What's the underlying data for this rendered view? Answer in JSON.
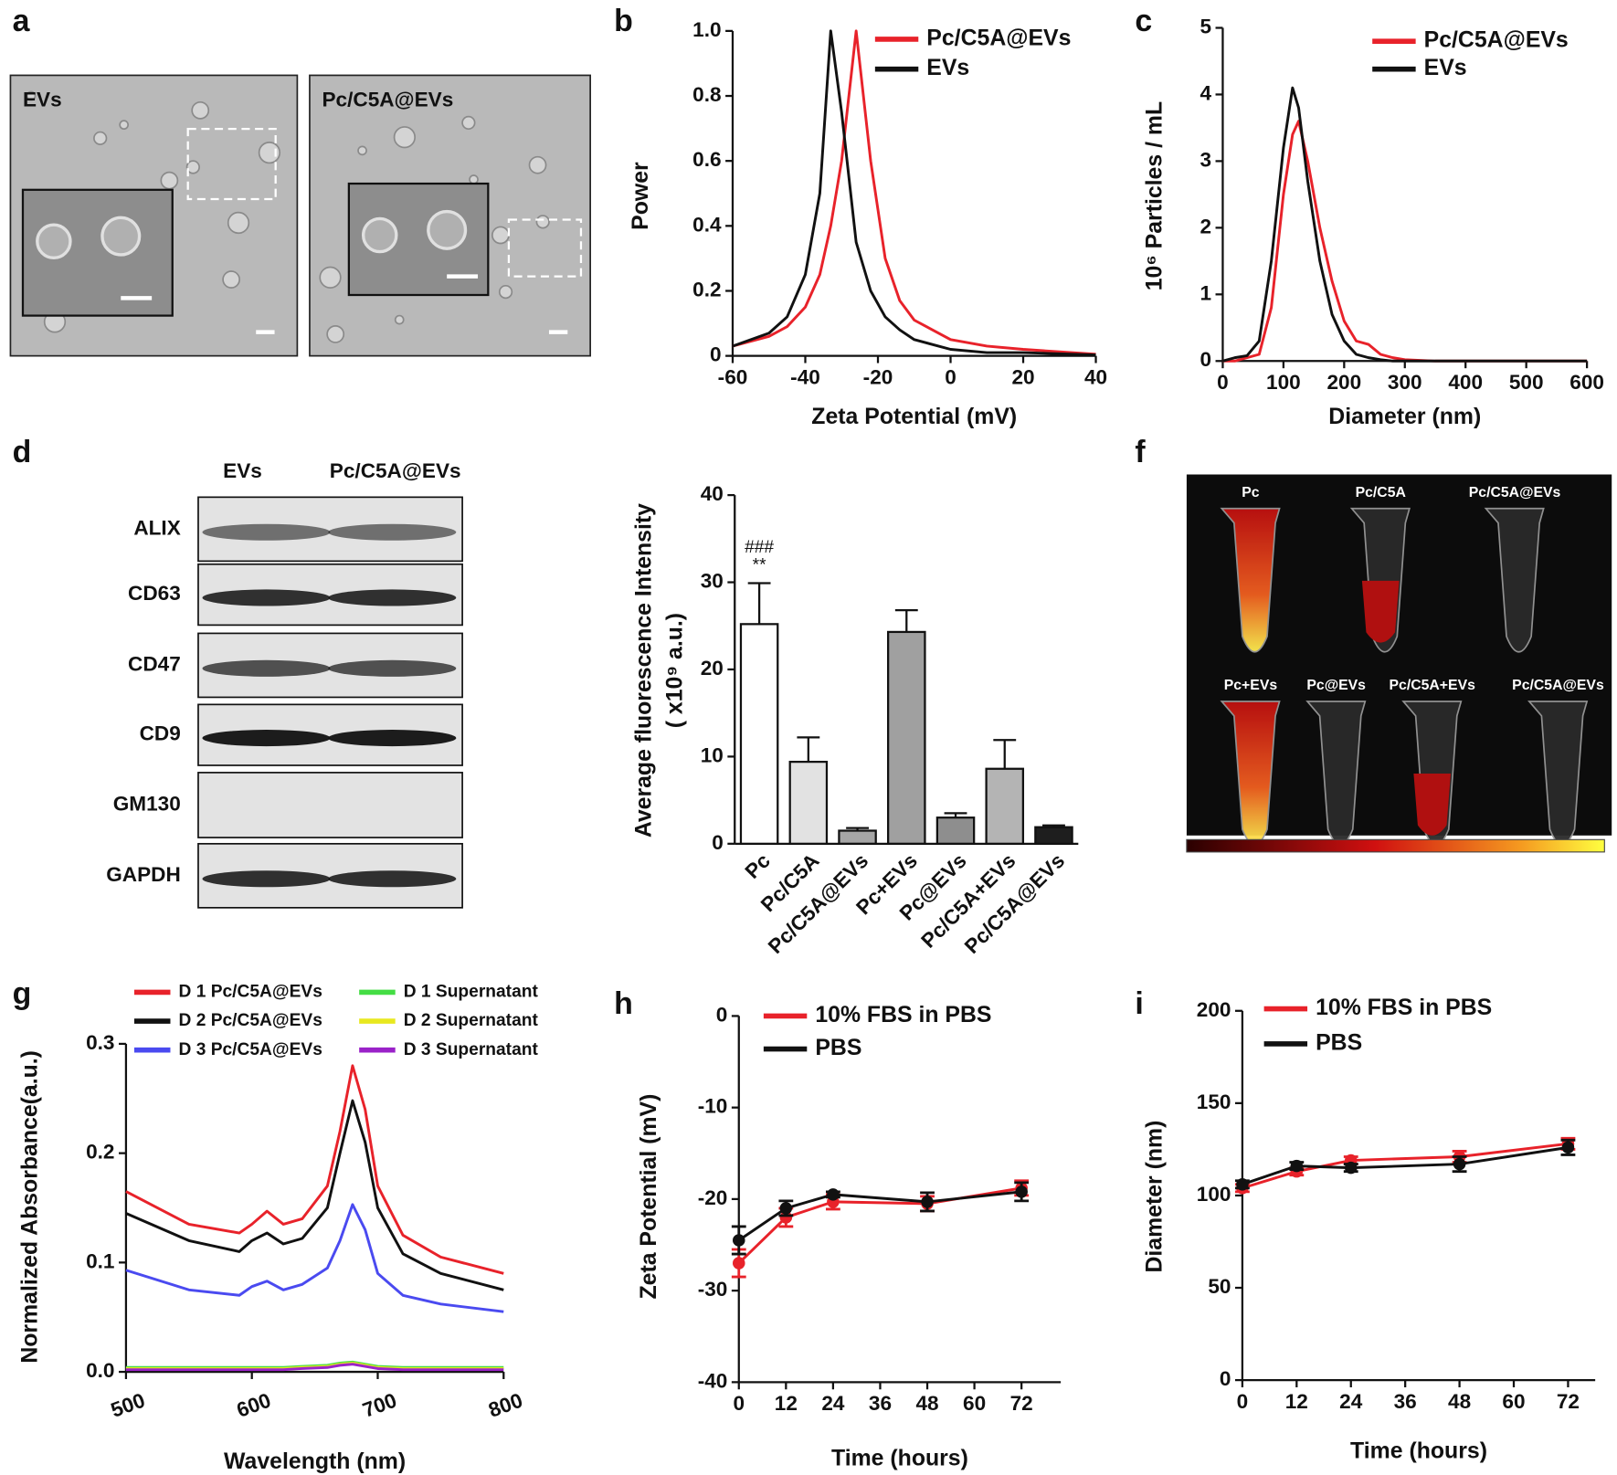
{
  "panel_labels": [
    "a",
    "b",
    "c",
    "d",
    "f",
    "g",
    "h",
    "i"
  ],
  "images": {
    "a": {
      "labels": [
        "EVs",
        "Pc/C5A@EVs"
      ]
    },
    "d": {
      "columns": [
        "EVs",
        "Pc/C5A@EVs"
      ],
      "rows": [
        "ALIX",
        "CD63",
        "CD47",
        "CD9",
        "GM130",
        "GAPDH"
      ]
    },
    "f": {
      "labels": [
        "Pc",
        "Pc/C5A",
        "Pc/C5A@EVs",
        "Pc+EVs",
        "Pc@EVs",
        "Pc/C5A+EVs",
        "Pc/C5A@EVs"
      ]
    }
  },
  "chart_data": [
    {
      "type": "line",
      "xlabel": "Zeta Potential (mV)",
      "ylabel": "Power",
      "x": [
        -60,
        -50,
        -45,
        -40,
        -36,
        -33,
        -30,
        -26,
        -22,
        -18,
        -14,
        -10,
        0,
        10,
        20,
        40
      ],
      "series": [
        {
          "name": "Pc/C5A@EVs",
          "color": "#e8222a",
          "values": [
            0.03,
            0.06,
            0.09,
            0.15,
            0.25,
            0.4,
            0.6,
            1.0,
            0.6,
            0.3,
            0.17,
            0.11,
            0.05,
            0.03,
            0.02,
            0.005
          ]
        },
        {
          "name": "EVs",
          "color": "#111111",
          "values": [
            0.03,
            0.07,
            0.12,
            0.25,
            0.5,
            1.0,
            0.75,
            0.35,
            0.2,
            0.12,
            0.08,
            0.05,
            0.02,
            0.01,
            0.01,
            0.003
          ]
        }
      ],
      "xlim": [
        -60,
        40
      ],
      "xticks": [
        -60,
        -40,
        -20,
        0,
        20,
        40
      ],
      "ylim": [
        0,
        1
      ],
      "yticks": [
        0,
        0.2,
        0.4,
        0.6,
        0.8,
        {
          "value": 1,
          "label": "1.0"
        }
      ],
      "legend": "upper right"
    },
    {
      "type": "line",
      "xlabel": "Diameter (nm)",
      "ylabel": "10⁶ Particles / mL",
      "x": [
        0,
        20,
        40,
        60,
        80,
        100,
        115,
        125,
        140,
        160,
        180,
        200,
        220,
        240,
        260,
        280,
        300,
        350,
        600
      ],
      "series": [
        {
          "name": "Pc/C5A@EVs",
          "color": "#e8222a",
          "values": [
            0,
            0,
            0.05,
            0.1,
            0.8,
            2.5,
            3.4,
            3.6,
            3.0,
            2.0,
            1.2,
            0.6,
            0.3,
            0.25,
            0.1,
            0.05,
            0.02,
            0,
            0
          ]
        },
        {
          "name": "EVs",
          "color": "#111111",
          "values": [
            0,
            0.05,
            0.08,
            0.3,
            1.5,
            3.2,
            4.1,
            3.8,
            2.7,
            1.5,
            0.7,
            0.3,
            0.1,
            0.05,
            0.02,
            0,
            0,
            0,
            0
          ]
        }
      ],
      "xlim": [
        0,
        600
      ],
      "xticks": [
        0,
        100,
        200,
        300,
        400,
        500,
        600
      ],
      "ylim": [
        0,
        5
      ],
      "yticks": [
        0,
        1,
        2,
        3,
        4,
        5
      ],
      "legend": "upper right"
    },
    {
      "type": "bar",
      "ylabel": [
        "Average fluorescence Intensity",
        "( x10⁹ a.u.)"
      ],
      "categories": [
        "Pc",
        "Pc/C5A",
        "Pc/C5A@EVs",
        "Pc+EVs",
        "Pc@EVs",
        "Pc/C5A+EVs",
        "Pc/C5A@EVs"
      ],
      "values": [
        25.2,
        9.4,
        1.5,
        24.3,
        3.0,
        8.6,
        1.9
      ],
      "errors": [
        4.7,
        2.8,
        0.3,
        2.5,
        0.5,
        3.3,
        0.2
      ],
      "colors": [
        "#ffffff",
        "#e2e2e2",
        "#a6a6a6",
        "#a0a0a0",
        "#8e8e8e",
        "#b4b4b4",
        "#1e1e1e"
      ],
      "annotations": [
        "###",
        "**"
      ],
      "ylim": [
        0,
        40
      ],
      "yticks": [
        0,
        10,
        20,
        30,
        40
      ]
    },
    {
      "type": "line",
      "xlabel": "Wavelength (nm)",
      "ylabel": "Normalized Absorbance(a.u.)",
      "x": [
        500,
        550,
        590,
        600,
        612,
        625,
        640,
        660,
        670,
        680,
        690,
        700,
        720,
        750,
        800
      ],
      "series": [
        {
          "name": "D 1 Pc/C5A@EVs",
          "color": "#e8222a",
          "values": [
            0.165,
            0.135,
            0.127,
            0.135,
            0.147,
            0.135,
            0.14,
            0.17,
            0.22,
            0.28,
            0.24,
            0.17,
            0.125,
            0.105,
            0.09
          ]
        },
        {
          "name": "D 2 Pc/C5A@EVs",
          "color": "#111111",
          "values": [
            0.145,
            0.12,
            0.11,
            0.12,
            0.127,
            0.117,
            0.122,
            0.15,
            0.2,
            0.248,
            0.21,
            0.15,
            0.108,
            0.09,
            0.075
          ]
        },
        {
          "name": "D 3 Pc/C5A@EVs",
          "color": "#4a4af0",
          "values": [
            0.093,
            0.075,
            0.07,
            0.078,
            0.083,
            0.075,
            0.08,
            0.095,
            0.12,
            0.153,
            0.13,
            0.09,
            0.07,
            0.062,
            0.055
          ]
        },
        {
          "name": "D 1 Supernatant",
          "color": "#44dd44",
          "values": [
            0.004,
            0.004,
            0.004,
            0.004,
            0.004,
            0.004,
            0.005,
            0.006,
            0.008,
            0.009,
            0.007,
            0.005,
            0.004,
            0.004,
            0.004
          ]
        },
        {
          "name": "D 2 Supernatant",
          "color": "#e8e820",
          "values": [
            0.003,
            0.003,
            0.003,
            0.003,
            0.003,
            0.003,
            0.004,
            0.005,
            0.007,
            0.008,
            0.006,
            0.004,
            0.003,
            0.003,
            0.003
          ]
        },
        {
          "name": "D 3 Supernatant",
          "color": "#9a22c8",
          "values": [
            0.002,
            0.002,
            0.002,
            0.002,
            0.002,
            0.002,
            0.003,
            0.004,
            0.006,
            0.007,
            0.005,
            0.003,
            0.002,
            0.002,
            0.002
          ]
        }
      ],
      "xlim": [
        500,
        800
      ],
      "xticks": [
        500,
        600,
        700,
        800
      ],
      "ylim": [
        0,
        0.3
      ],
      "yticks": [
        {
          "value": 0,
          "label": "0.0"
        },
        0.1,
        0.2,
        0.3
      ],
      "legend": "top"
    },
    {
      "type": "line",
      "xlabel": "Time (hours)",
      "ylabel": "Zeta Potential (mV)",
      "x": [
        0,
        12,
        24,
        48,
        72
      ],
      "series": [
        {
          "name": "10% FBS in PBS",
          "color": "#e8222a",
          "values": [
            -27,
            -22,
            -20.3,
            -20.5,
            -18.8
          ],
          "errors": [
            1.5,
            1,
            0.8,
            0.8,
            0.8
          ]
        },
        {
          "name": "PBS",
          "color": "#111111",
          "values": [
            -24.5,
            -21,
            -19.5,
            -20.3,
            -19.2
          ],
          "errors": [
            1.5,
            0.8,
            0.3,
            1,
            1
          ]
        }
      ],
      "xlim": [
        0,
        82
      ],
      "xticks": [
        0,
        12,
        24,
        36,
        48,
        60,
        72
      ],
      "ylim": [
        -40,
        0
      ],
      "yticks": [
        -40,
        -30,
        -20,
        -10,
        0
      ],
      "legend": "upper left"
    },
    {
      "type": "line",
      "xlabel": "Time (hours)",
      "ylabel": "Diameter (nm)",
      "x": [
        0,
        12,
        24,
        48,
        72
      ],
      "series": [
        {
          "name": "10% FBS in PBS",
          "color": "#e8222a",
          "values": [
            104,
            113,
            119,
            121,
            128
          ],
          "errors": [
            2,
            2,
            2,
            3,
            3
          ]
        },
        {
          "name": "PBS",
          "color": "#111111",
          "values": [
            106,
            116,
            115,
            117,
            126
          ],
          "errors": [
            2,
            2,
            2,
            4,
            4
          ]
        }
      ],
      "xlim": [
        0,
        78
      ],
      "xticks": [
        0,
        12,
        24,
        36,
        48,
        60,
        72
      ],
      "ylim": [
        0,
        200
      ],
      "yticks": [
        0,
        50,
        100,
        150,
        200
      ],
      "legend": "upper left"
    }
  ]
}
